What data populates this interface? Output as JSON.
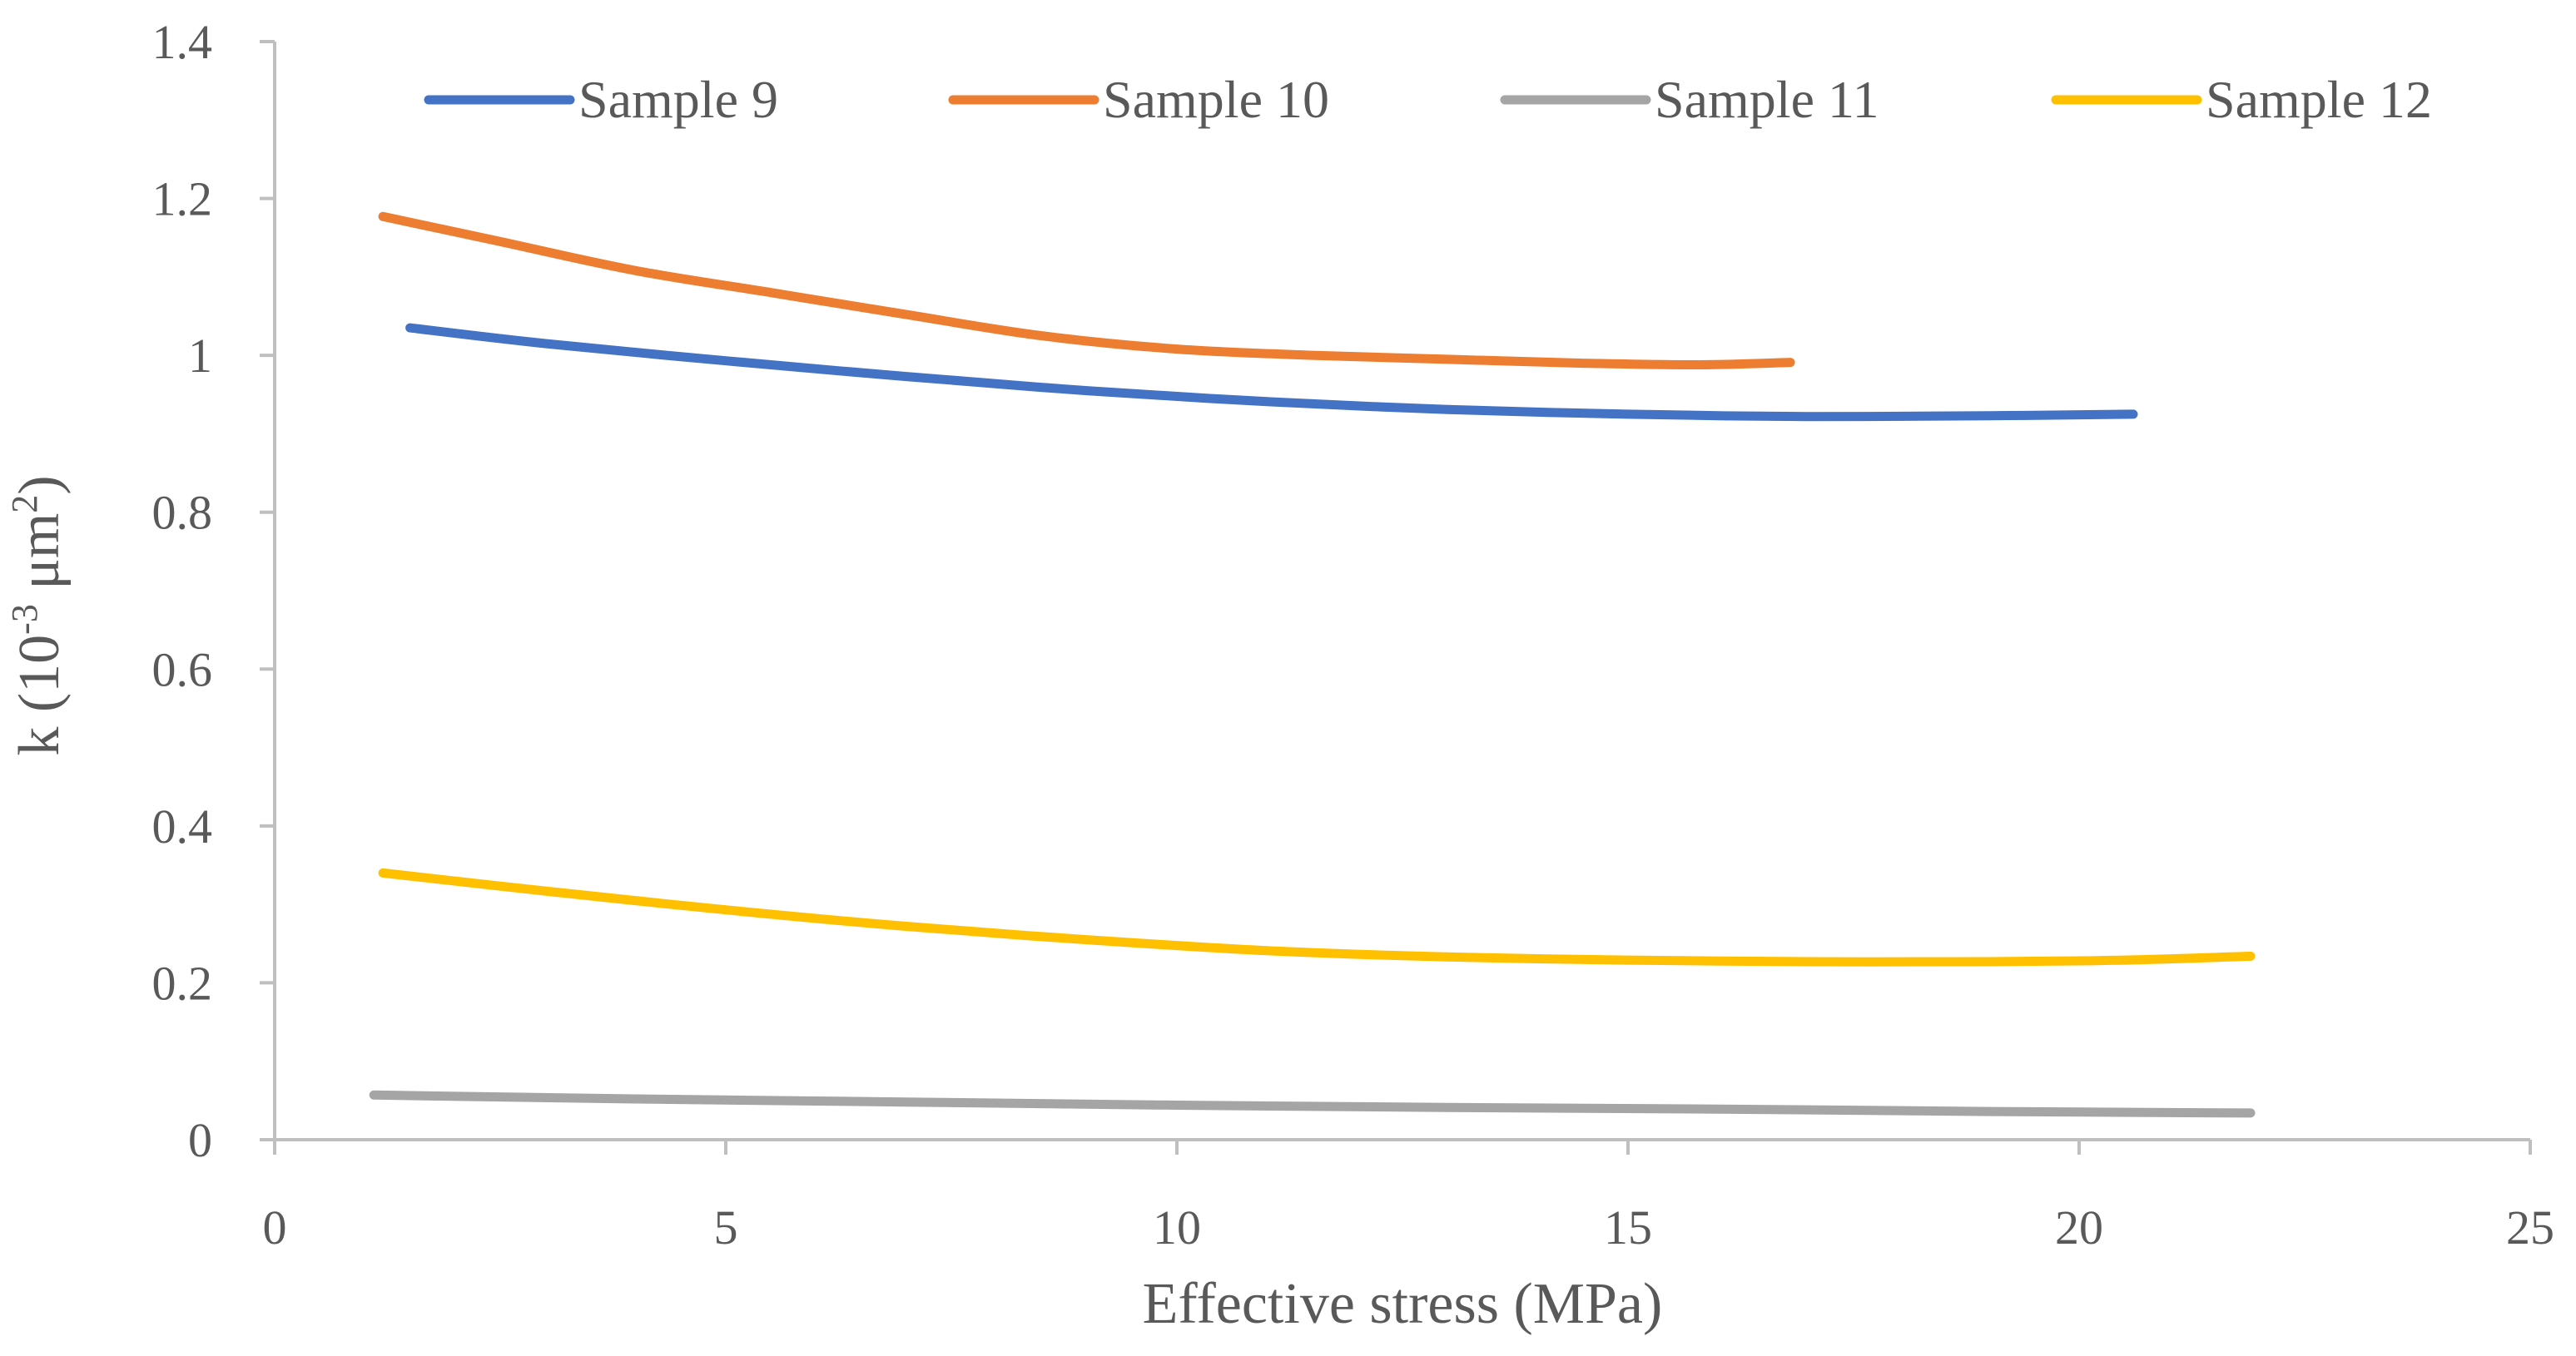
{
  "chart_data": {
    "type": "line",
    "title": "",
    "xlabel": "Effective stress (MPa)",
    "ylabel": {
      "prefix": "k (10",
      "exp": "-3",
      "middle": " μm",
      "exp2": "2",
      "suffix": ")"
    },
    "xlim": [
      0,
      25
    ],
    "ylim": [
      0,
      1.4
    ],
    "xticks": [
      0,
      5,
      10,
      15,
      20,
      25
    ],
    "xtick_labels": [
      "0",
      "5",
      "10",
      "15",
      "20",
      "25"
    ],
    "yticks": [
      0,
      0.2,
      0.4,
      0.6,
      0.8,
      1.0,
      1.2,
      1.4
    ],
    "ytick_labels": [
      "0",
      "0.2",
      "0.4",
      "0.6",
      "0.8",
      "1",
      "1.2",
      "1.4"
    ],
    "grid": false,
    "legend_position": "top",
    "series": [
      {
        "name": "Sample 9",
        "color": "#4472C4",
        "x": [
          1.5,
          3,
          5,
          7,
          9,
          11,
          13,
          15,
          17,
          19,
          20.6
        ],
        "y": [
          1.035,
          1.015,
          0.993,
          0.973,
          0.955,
          0.941,
          0.931,
          0.925,
          0.922,
          0.923,
          0.925
        ]
      },
      {
        "name": "Sample 10",
        "color": "#ED7D31",
        "x": [
          1.2,
          2.5,
          4,
          5.5,
          7,
          8.5,
          10,
          11.5,
          13,
          14.5,
          15.8,
          16.8
        ],
        "y": [
          1.177,
          1.145,
          1.108,
          1.08,
          1.052,
          1.025,
          1.008,
          1.0,
          0.995,
          0.99,
          0.988,
          0.991
        ]
      },
      {
        "name": "Sample 11",
        "color": "#A5A5A5",
        "x": [
          1.1,
          4,
          7,
          10,
          13,
          16,
          19,
          21.9
        ],
        "y": [
          0.057,
          0.052,
          0.048,
          0.044,
          0.041,
          0.039,
          0.036,
          0.034
        ]
      },
      {
        "name": "Sample 12",
        "color": "#FFC000",
        "x": [
          1.2,
          3,
          5,
          7,
          9,
          11,
          13,
          15,
          17,
          19,
          20.5,
          21.9
        ],
        "y": [
          0.34,
          0.317,
          0.293,
          0.272,
          0.255,
          0.241,
          0.233,
          0.229,
          0.227,
          0.227,
          0.229,
          0.234
        ]
      }
    ]
  }
}
